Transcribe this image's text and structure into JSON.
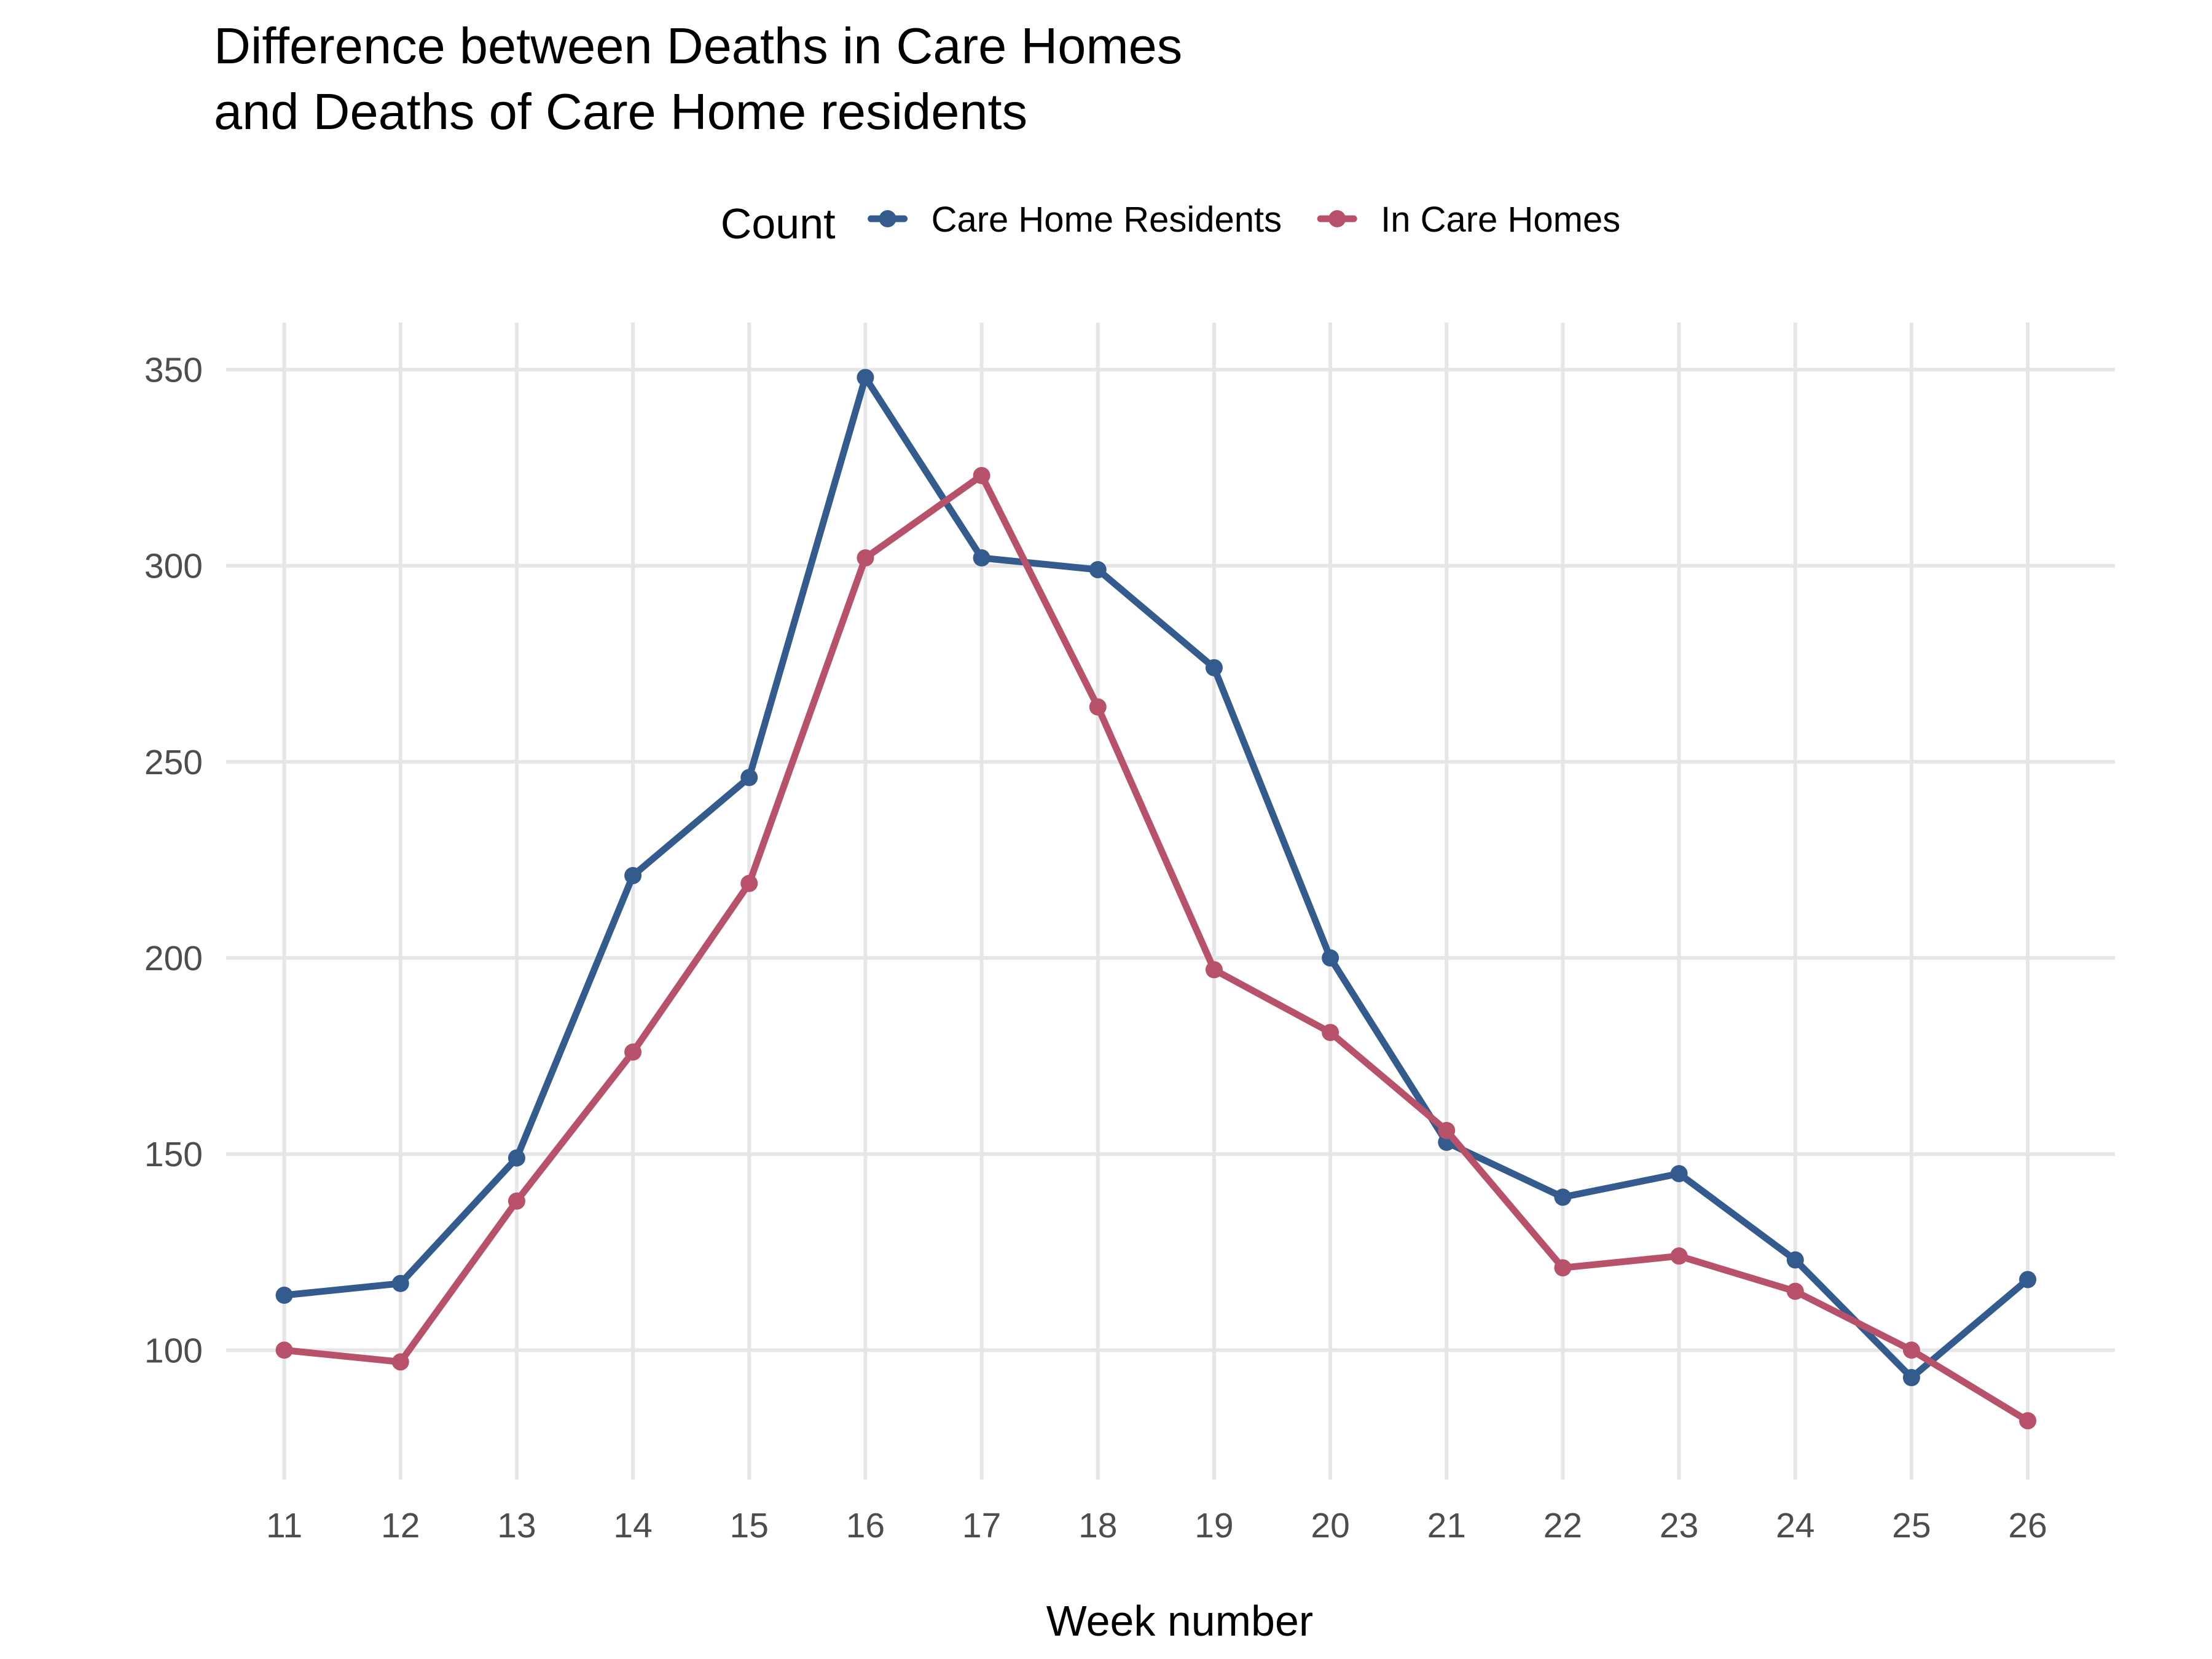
{
  "chart_data": {
    "type": "line",
    "title": [
      "Difference between Deaths in Care Homes",
      "and Deaths of Care Home residents"
    ],
    "xlabel": "Week number",
    "ylabel": "",
    "legend_title": "Count",
    "legend_position": "top",
    "grid": true,
    "x": [
      11,
      12,
      13,
      14,
      15,
      16,
      17,
      18,
      19,
      20,
      21,
      22,
      23,
      24,
      25,
      26
    ],
    "xlim": [
      10.5,
      26.75
    ],
    "ylim": [
      67,
      362
    ],
    "yticks": [
      100,
      150,
      200,
      250,
      300,
      350
    ],
    "series": [
      {
        "name": "Care Home Residents",
        "color": "#335b8e",
        "values": [
          114,
          117,
          149,
          221,
          246,
          348,
          302,
          299,
          274,
          200,
          153,
          139,
          145,
          123,
          93,
          118
        ]
      },
      {
        "name": "In Care Homes",
        "color": "#b8516a",
        "values": [
          100,
          97,
          138,
          176,
          219,
          302,
          323,
          264,
          197,
          181,
          156,
          121,
          124,
          115,
          100,
          82
        ]
      }
    ]
  }
}
